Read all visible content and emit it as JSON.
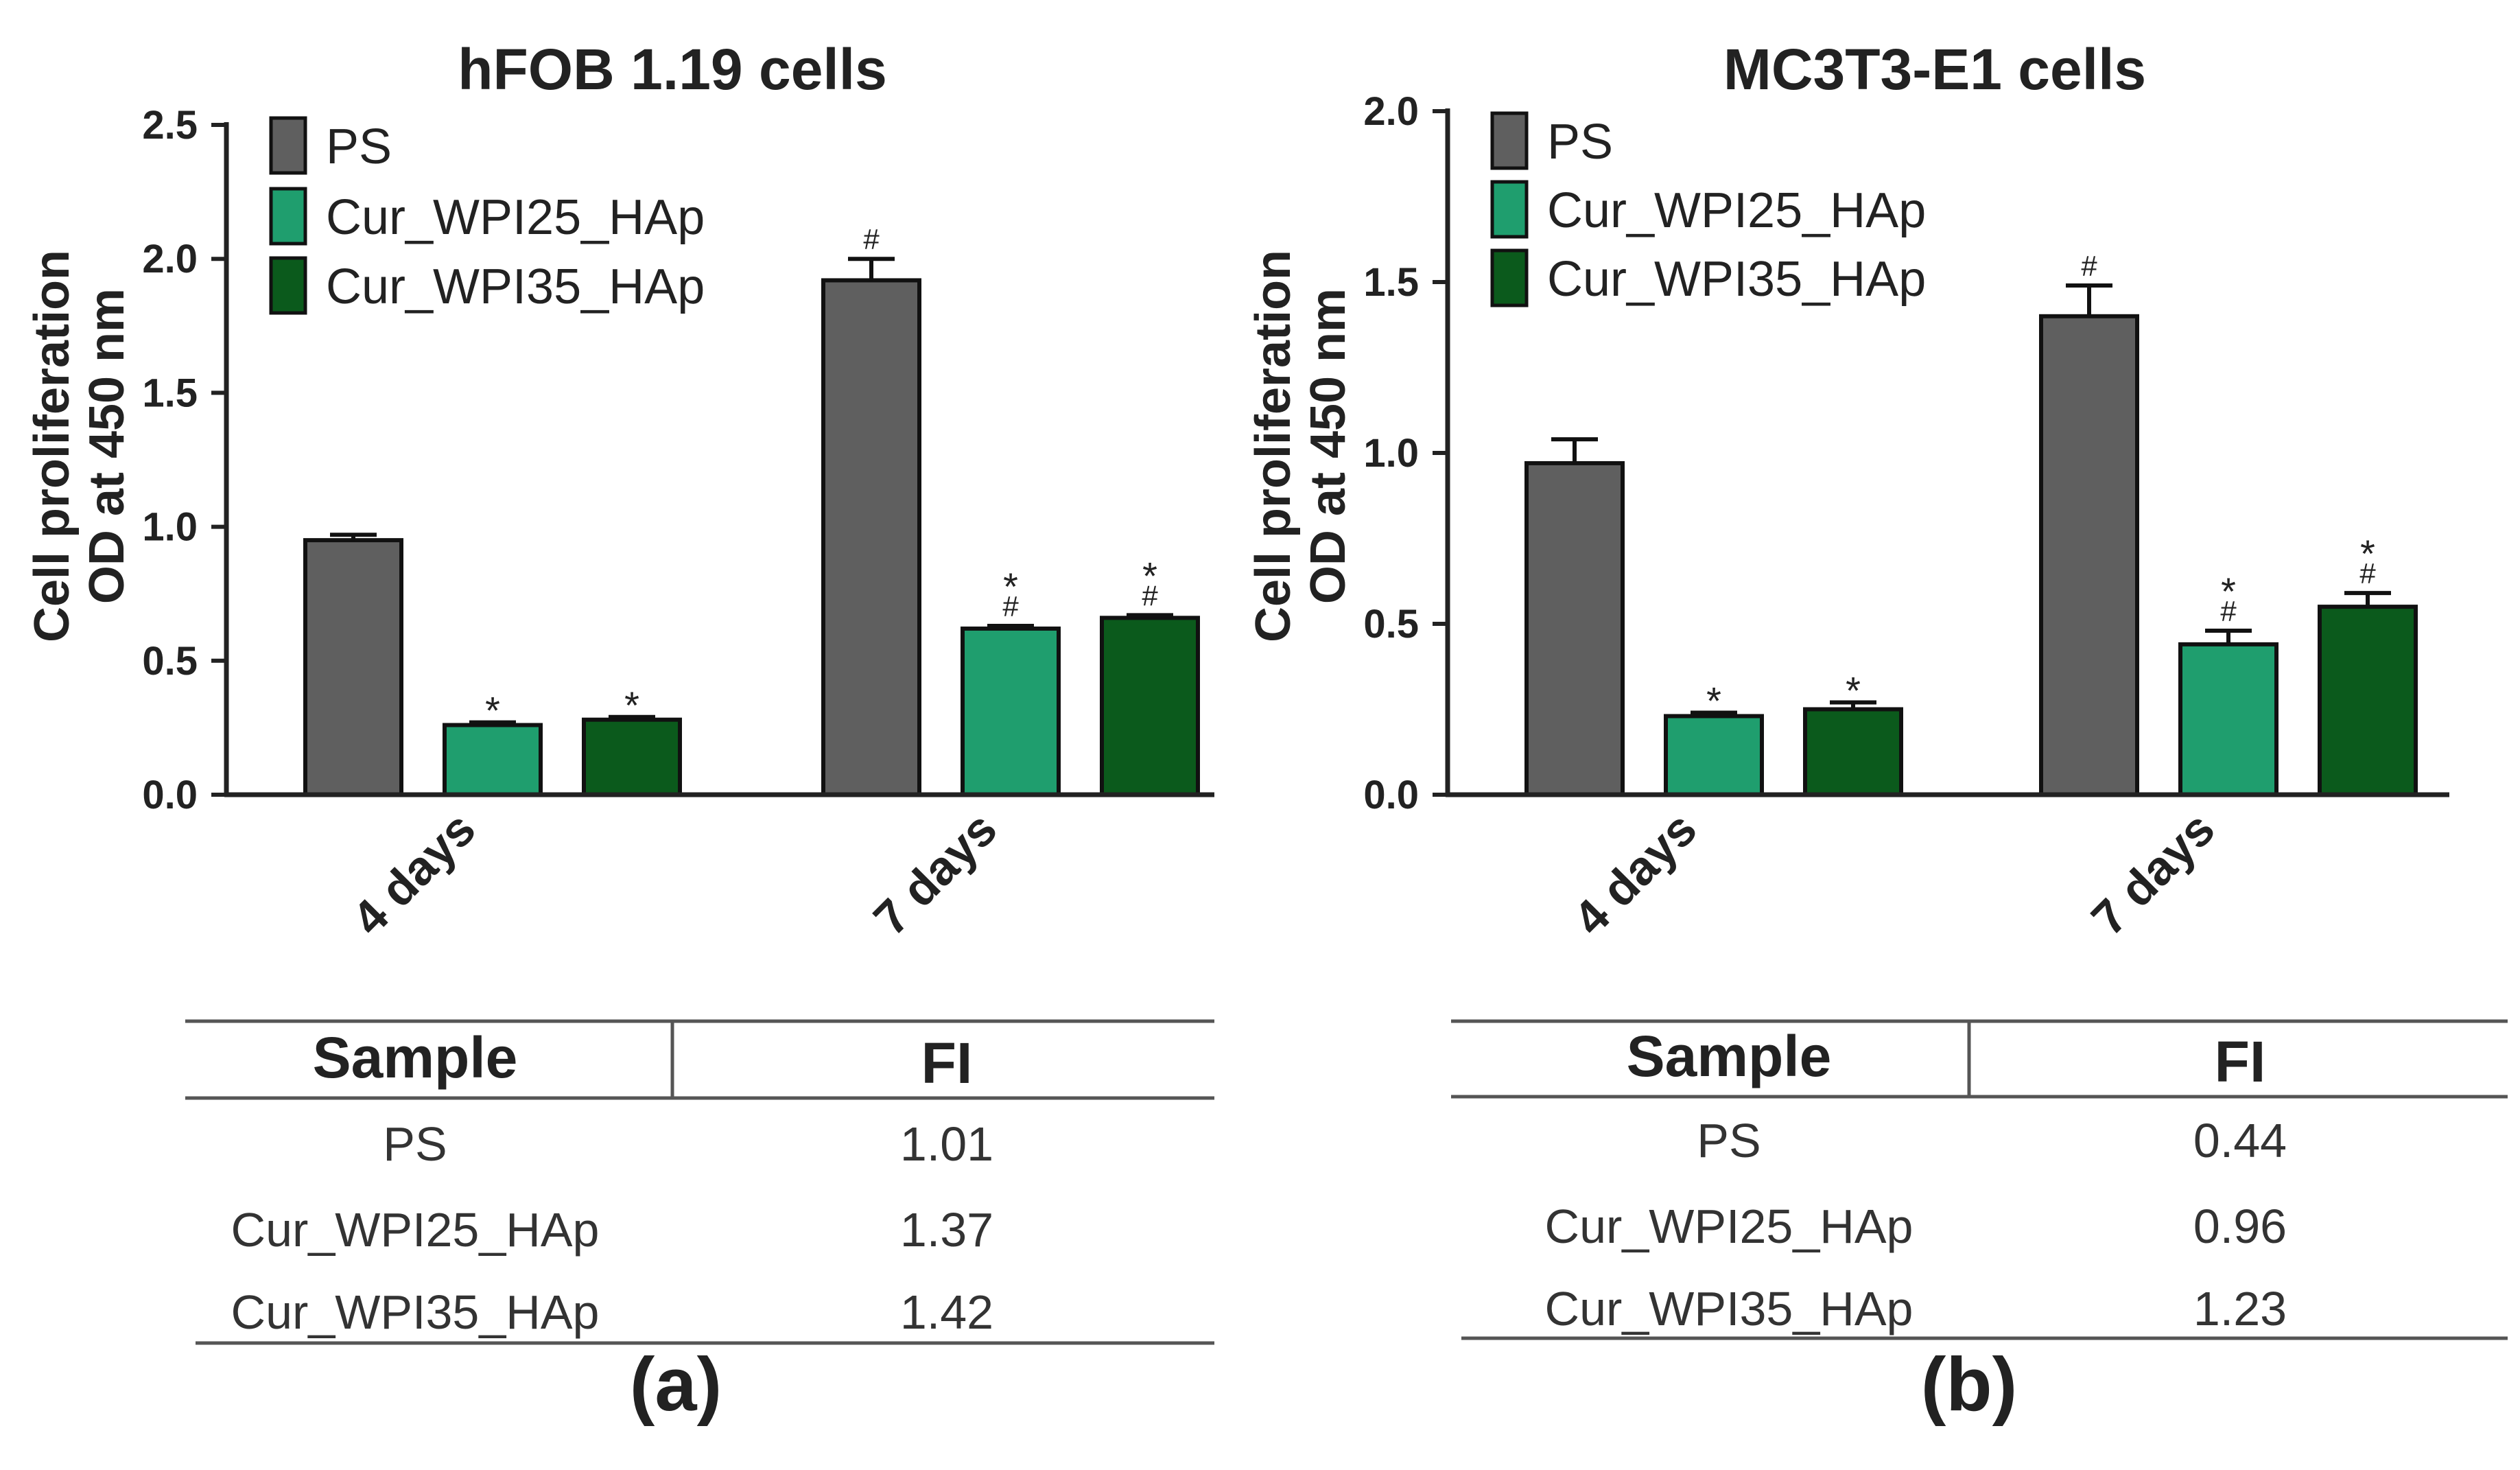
{
  "colors": {
    "ps": "#5f5f5f",
    "wpi25": "#1f9e6e",
    "wpi35": "#0b5a1c",
    "axis": "#222222",
    "text": "#333333"
  },
  "legend": [
    {
      "key": "ps",
      "label": "PS"
    },
    {
      "key": "wpi25",
      "label": "Cur_WPI25_HAp"
    },
    {
      "key": "wpi35",
      "label": "Cur_WPI35_HAp"
    }
  ],
  "chart_data": [
    {
      "type": "bar",
      "title": "hFOB 1.19 cells",
      "ylabel_line1": "Cell proliferation",
      "ylabel_line2": "OD at 450 nm",
      "xlabel": "",
      "ylim": [
        0,
        2.5
      ],
      "yticks": [
        "0.0",
        "0.5",
        "1.0",
        "1.5",
        "2.0",
        "2.5"
      ],
      "categories": [
        "4 days",
        "7 days"
      ],
      "series": [
        {
          "name": "PS",
          "values": [
            0.95,
            1.92
          ],
          "errors": [
            0.02,
            0.08
          ],
          "annotations": [
            "",
            "#"
          ]
        },
        {
          "name": "Cur_WPI25_HAp",
          "values": [
            0.26,
            0.62
          ],
          "errors": [
            0.01,
            0.01
          ],
          "annotations": [
            "*",
            "*#"
          ]
        },
        {
          "name": "Cur_WPI35_HAp",
          "values": [
            0.28,
            0.66
          ],
          "errors": [
            0.01,
            0.01
          ],
          "annotations": [
            "*",
            "*#"
          ]
        }
      ],
      "panel_label": "(a)",
      "table": {
        "headers": [
          "Sample",
          "FI"
        ],
        "rows": [
          [
            "PS",
            "1.01"
          ],
          [
            "Cur_WPI25_HAp",
            "1.37"
          ],
          [
            "Cur_WPI35_HAp",
            "1.42"
          ]
        ]
      }
    },
    {
      "type": "bar",
      "title": "MC3T3-E1 cells",
      "ylabel_line1": "Cell proliferation",
      "ylabel_line2": "OD at 450 nm",
      "xlabel": "",
      "ylim": [
        0,
        2.0
      ],
      "yticks": [
        "0.0",
        "0.5",
        "1.0",
        "1.5",
        "2.0"
      ],
      "categories": [
        "4 days",
        "7 days"
      ],
      "series": [
        {
          "name": "PS",
          "values": [
            0.97,
            1.4
          ],
          "errors": [
            0.07,
            0.09
          ],
          "annotations": [
            "",
            "#"
          ]
        },
        {
          "name": "Cur_WPI25_HAp",
          "values": [
            0.23,
            0.44
          ],
          "errors": [
            0.01,
            0.04
          ],
          "annotations": [
            "*",
            "*#"
          ]
        },
        {
          "name": "Cur_WPI35_HAp",
          "values": [
            0.25,
            0.55
          ],
          "errors": [
            0.02,
            0.04
          ],
          "annotations": [
            "*",
            "*#"
          ]
        }
      ],
      "panel_label": "(b)",
      "table": {
        "headers": [
          "Sample",
          "FI"
        ],
        "rows": [
          [
            "PS",
            "0.44"
          ],
          [
            "Cur_WPI25_HAp",
            "0.96"
          ],
          [
            "Cur_WPI35_HAp",
            "1.23"
          ]
        ]
      }
    }
  ]
}
